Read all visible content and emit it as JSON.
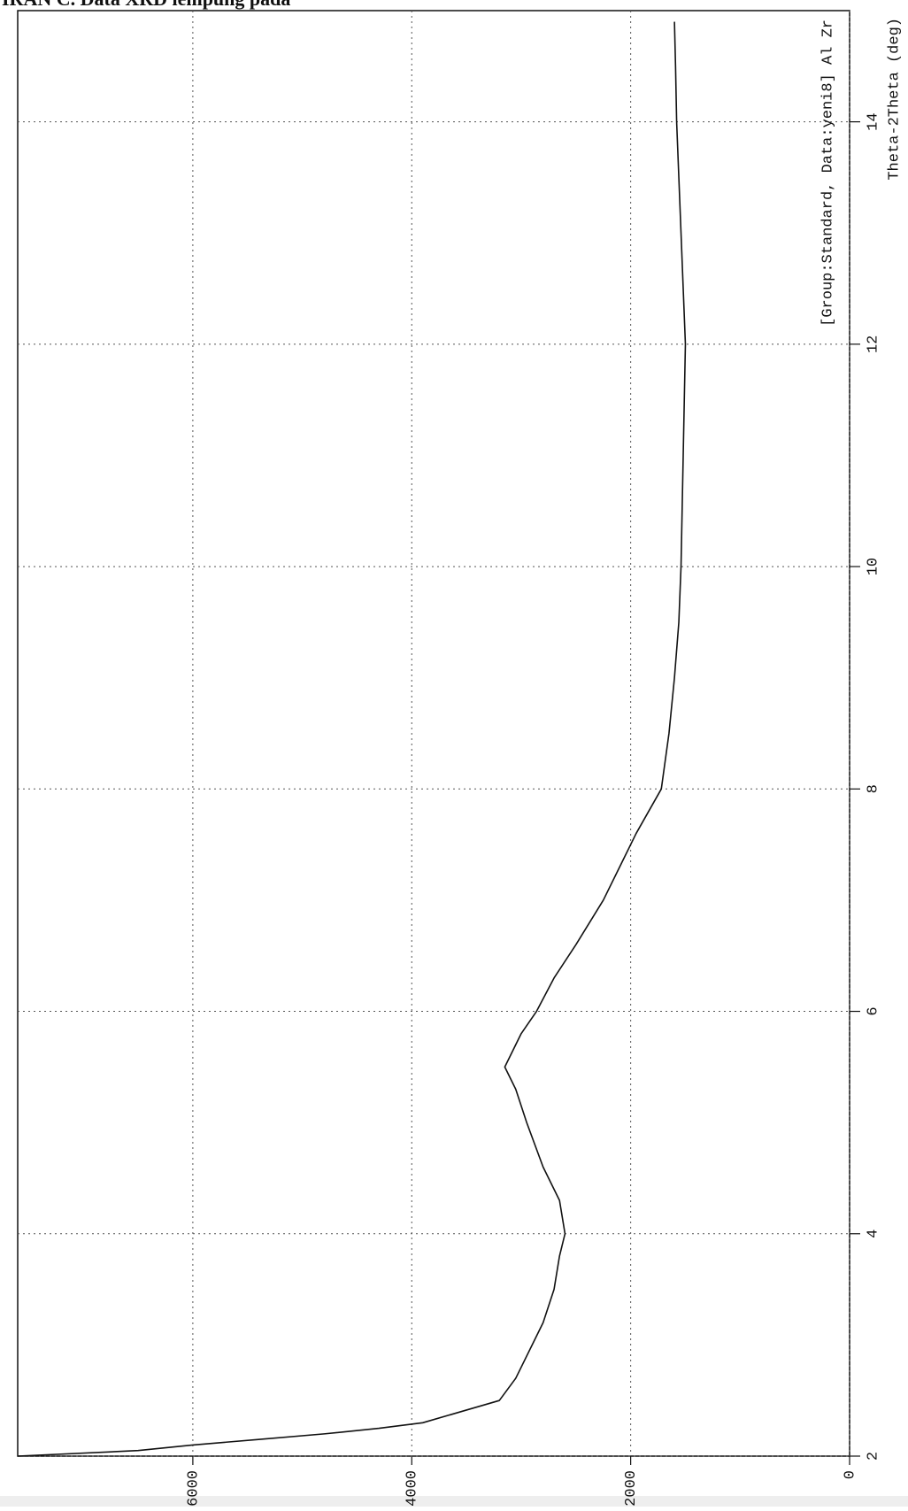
{
  "chart_data": {
    "type": "line",
    "title": "IRAN C. Data XRD lempung pada",
    "annotation": "[Group:Standard, Data:yeni8] Al Zr",
    "x_label": "Theta-2Theta (deg)",
    "x": [
      2.0,
      2.05,
      2.1,
      2.15,
      2.2,
      2.25,
      2.3,
      2.5,
      2.7,
      3.0,
      3.2,
      3.5,
      3.8,
      4.0,
      4.3,
      4.6,
      5.0,
      5.3,
      5.5,
      5.8,
      6.0,
      6.3,
      6.6,
      7.0,
      7.3,
      7.6,
      8.0,
      8.5,
      9.0,
      9.5,
      10.0,
      10.5,
      11.0,
      11.5,
      12.0,
      12.5,
      13.0,
      13.5,
      14.0,
      14.5,
      14.9
    ],
    "values": [
      7600,
      6500,
      6000,
      5400,
      4800,
      4300,
      3900,
      3200,
      3050,
      2900,
      2800,
      2700,
      2650,
      2600,
      2650,
      2800,
      2950,
      3050,
      3150,
      3000,
      2860,
      2700,
      2500,
      2250,
      2100,
      1950,
      1720,
      1650,
      1600,
      1560,
      1540,
      1530,
      1520,
      1510,
      1500,
      1520,
      1540,
      1560,
      1580,
      1590,
      1600
    ],
    "color": "#111111",
    "xlim": [
      2,
      15
    ],
    "xticks": [
      2,
      4,
      6,
      8,
      10,
      12,
      14
    ],
    "ylim": [
      0,
      7600
    ],
    "yticks": [
      0,
      2000,
      4000,
      6000
    ],
    "grid": true
  }
}
